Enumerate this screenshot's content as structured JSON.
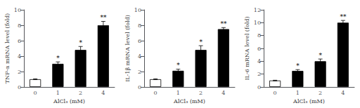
{
  "chart_data": [
    {
      "type": "bar",
      "xlabel": "AlCl₃ (mM)",
      "ylabel": "TNF-α mRNA level (fold)",
      "categories": [
        "0",
        "1",
        "2",
        "4"
      ],
      "values": [
        1.0,
        3.0,
        4.8,
        8.0
      ],
      "errors": [
        0.05,
        0.25,
        0.45,
        0.5
      ],
      "colors": [
        "white",
        "black",
        "black",
        "black"
      ],
      "annotations": [
        {
          "category": "1",
          "text": "*"
        },
        {
          "category": "2",
          "text": "*"
        },
        {
          "category": "4",
          "text": "**"
        }
      ],
      "ylim": [
        0,
        10
      ],
      "yticks": [
        0,
        2,
        4,
        6,
        8,
        10
      ],
      "grid": false
    },
    {
      "type": "bar",
      "xlabel": "AlCl₃ (mM)",
      "ylabel": "IL-1β mRNA level (fold)",
      "categories": [
        "0",
        "1",
        "2",
        "4"
      ],
      "values": [
        1.0,
        2.1,
        4.8,
        7.5
      ],
      "errors": [
        0.05,
        0.2,
        0.55,
        0.2
      ],
      "colors": [
        "white",
        "black",
        "black",
        "black"
      ],
      "annotations": [
        {
          "category": "1",
          "text": "*"
        },
        {
          "category": "2",
          "text": "*"
        },
        {
          "category": "4",
          "text": "**"
        }
      ],
      "ylim": [
        0,
        10
      ],
      "yticks": [
        0,
        2,
        4,
        6,
        8,
        10
      ],
      "grid": false
    },
    {
      "type": "bar",
      "xlabel": "AlCl₃ (mM)",
      "ylabel": "IL-6 mRNA level (fold)",
      "categories": [
        "0",
        "1",
        "2",
        "4"
      ],
      "values": [
        1.0,
        2.5,
        4.0,
        10.0
      ],
      "errors": [
        0.05,
        0.2,
        0.35,
        0.35
      ],
      "colors": [
        "white",
        "black",
        "black",
        "black"
      ],
      "annotations": [
        {
          "category": "1",
          "text": "*"
        },
        {
          "category": "2",
          "text": "*"
        },
        {
          "category": "4",
          "text": "**"
        }
      ],
      "ylim": [
        0,
        12
      ],
      "yticks": [
        0,
        2,
        4,
        6,
        8,
        10,
        12
      ],
      "grid": false
    }
  ]
}
